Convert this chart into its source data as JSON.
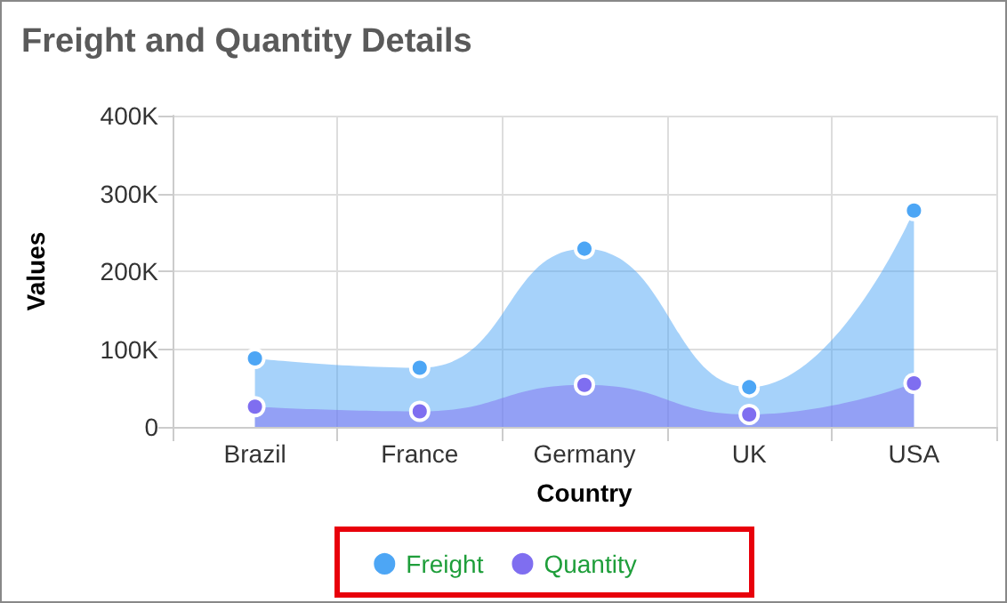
{
  "chart_data": {
    "type": "area",
    "title": "Freight and Quantity Details",
    "xlabel": "Country",
    "ylabel": "Values",
    "categories": [
      "Brazil",
      "France",
      "Germany",
      "UK",
      "USA"
    ],
    "series": [
      {
        "name": "Freight",
        "color": "#4da6f5",
        "values": [
          88000,
          76000,
          229000,
          51000,
          278000
        ]
      },
      {
        "name": "Quantity",
        "color": "#7f6ef0",
        "values": [
          26000,
          20000,
          54000,
          16000,
          56000
        ]
      }
    ],
    "ylim": [
      0,
      400000
    ],
    "yticks": [
      {
        "value": 0,
        "label": "0"
      },
      {
        "value": 100000,
        "label": "100K"
      },
      {
        "value": 200000,
        "label": "200K"
      },
      {
        "value": 300000,
        "label": "300K"
      },
      {
        "value": 400000,
        "label": "400K"
      }
    ],
    "grid": true,
    "legend": "bottom",
    "marker": "circle"
  }
}
